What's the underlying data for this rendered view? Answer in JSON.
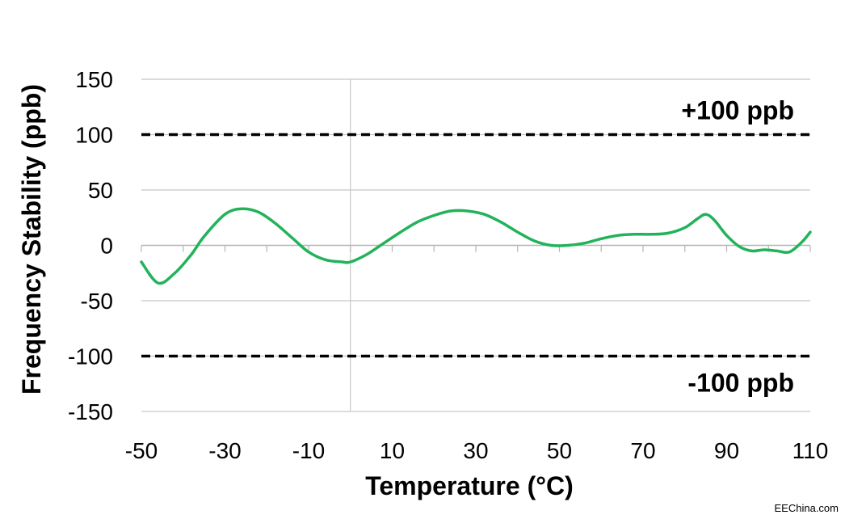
{
  "chart_data": {
    "type": "line",
    "xlabel": "Temperature (°C)",
    "ylabel": "Frequency Stability (ppb)",
    "xlim": [
      -50,
      110
    ],
    "ylim": [
      -150,
      150
    ],
    "xticks": [
      -50,
      -30,
      -10,
      10,
      30,
      50,
      70,
      90,
      110
    ],
    "yticks": [
      150,
      100,
      50,
      0,
      -50,
      -100,
      -150
    ],
    "grid": "horizontal",
    "series": [
      {
        "color": "#22b35a",
        "x": [
          -50,
          -46,
          -42,
          -38,
          -35,
          -30,
          -26,
          -22,
          -18,
          -14,
          -10,
          -6,
          -2,
          0,
          4,
          8,
          12,
          16,
          20,
          24,
          28,
          32,
          36,
          40,
          44,
          48,
          52,
          56,
          60,
          64,
          68,
          72,
          76,
          80,
          83,
          85,
          87,
          90,
          93,
          96,
          99,
          102,
          105,
          108,
          110
        ],
        "y": [
          -15,
          -34,
          -25,
          -8,
          8,
          28,
          33,
          30,
          20,
          7,
          -6,
          -13,
          -15,
          -15,
          -8,
          2,
          12,
          21,
          27,
          31,
          31,
          28,
          21,
          12,
          4,
          0,
          0,
          2,
          6,
          9,
          10,
          10,
          11,
          16,
          24,
          28,
          23,
          9,
          -1,
          -5,
          -4,
          -5,
          -6,
          3,
          12
        ]
      }
    ],
    "reference_lines": [
      {
        "y": 100,
        "label": "+100 ppb",
        "style": "dashed",
        "color": "#000000"
      },
      {
        "y": -100,
        "label": "-100 ppb",
        "style": "dashed",
        "color": "#000000"
      }
    ]
  },
  "watermark": "EEChina.com"
}
